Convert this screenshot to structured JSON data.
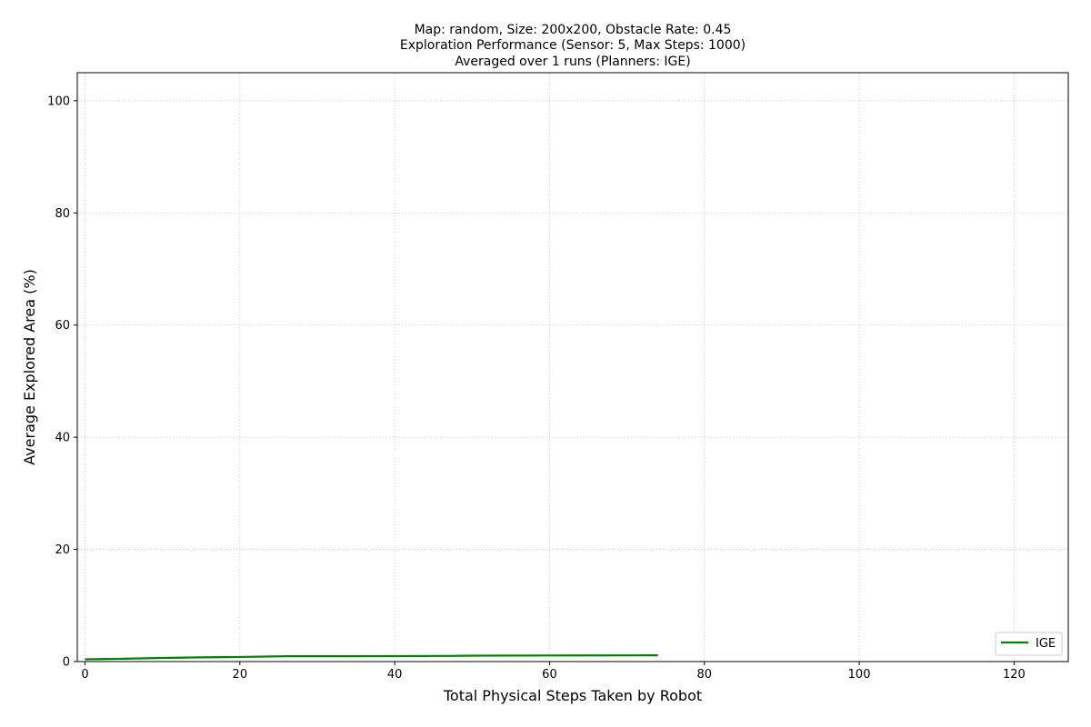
{
  "chart_data": {
    "type": "line",
    "title_lines": [
      "Map: random, Size: 200x200, Obstacle Rate: 0.45",
      "Exploration Performance (Sensor: 5, Max Steps: 1000)",
      "Averaged over 1 runs (Planners: IGE)"
    ],
    "xlabel": "Total Physical Steps Taken by Robot",
    "ylabel": "Average Explored Area (%)",
    "xlim": [
      -1,
      127
    ],
    "ylim": [
      0,
      105
    ],
    "xticks": [
      0,
      20,
      40,
      60,
      80,
      100,
      120
    ],
    "yticks": [
      0,
      20,
      40,
      60,
      80,
      100
    ],
    "grid": true,
    "legend_position": "lower-right",
    "series": [
      {
        "name": "IGE",
        "color": "#008000",
        "x": [
          0,
          5,
          10,
          15,
          20,
          26,
          30,
          40,
          47,
          50,
          60,
          70,
          74
        ],
        "y": [
          0.4,
          0.5,
          0.65,
          0.75,
          0.82,
          0.95,
          0.95,
          0.97,
          1.0,
          1.05,
          1.08,
          1.1,
          1.12
        ]
      }
    ]
  }
}
